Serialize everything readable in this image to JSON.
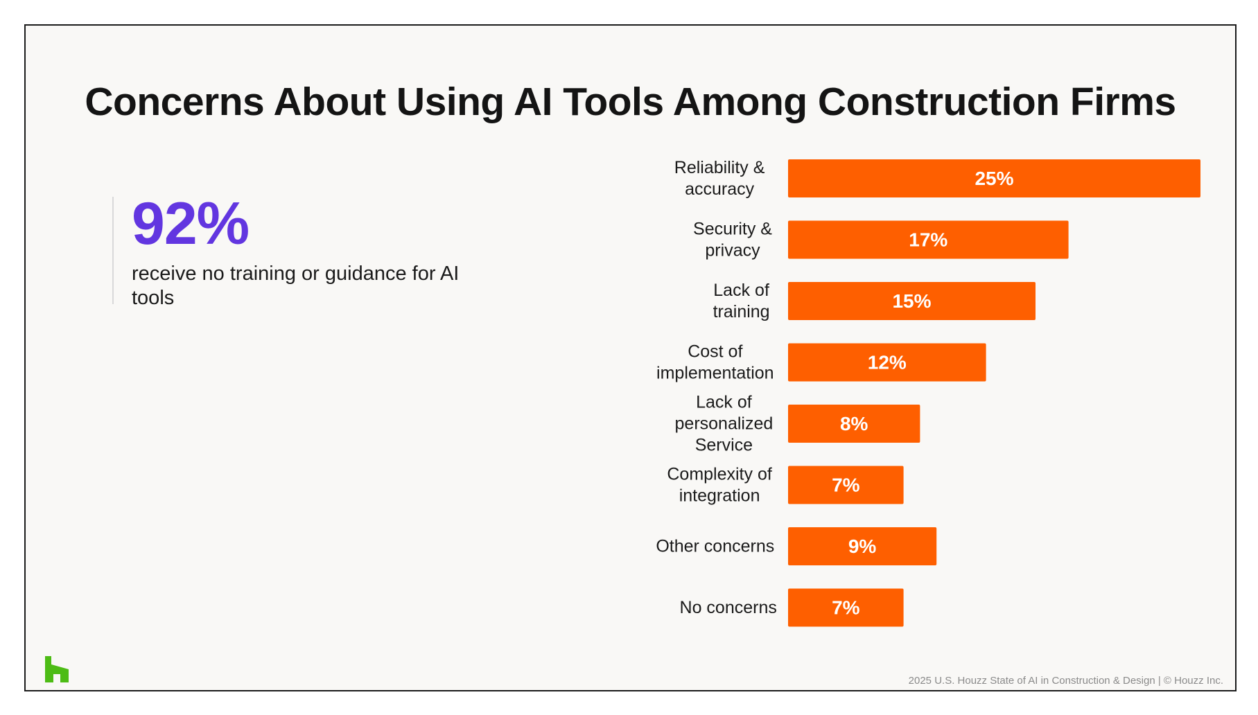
{
  "slide": {
    "title": "Concerns About Using AI Tools Among Construction Firms",
    "footer": "2025 U.S. Houzz State of AI in Construction & Design | © Houzz Inc."
  },
  "stat": {
    "value": "92%",
    "description": "receive no training or guidance for AI tools"
  },
  "colors": {
    "bar": "#fe5f00",
    "stat": "#6236e0",
    "logo": "#4dbc15"
  },
  "icons": {
    "logo": "houzz-logo-icon"
  },
  "chart_data": {
    "type": "bar",
    "orientation": "horizontal",
    "categories": [
      [
        "Reliability &",
        "accuracy"
      ],
      [
        "Security &",
        "privacy"
      ],
      [
        "Lack of",
        "training"
      ],
      [
        "Cost of",
        "implementation"
      ],
      [
        "Lack of",
        "personalized",
        "Service"
      ],
      [
        "Complexity of",
        "integration"
      ],
      [
        "Other concerns"
      ],
      [
        "No concerns"
      ]
    ],
    "values": [
      25,
      17,
      15,
      12,
      8,
      7,
      9,
      7
    ],
    "value_labels": [
      "25%",
      "17%",
      "15%",
      "12%",
      "8%",
      "7%",
      "9%",
      "7%"
    ],
    "unit": "%",
    "grid": false,
    "legend": "none",
    "data_labels": "inside-bar-centered"
  }
}
